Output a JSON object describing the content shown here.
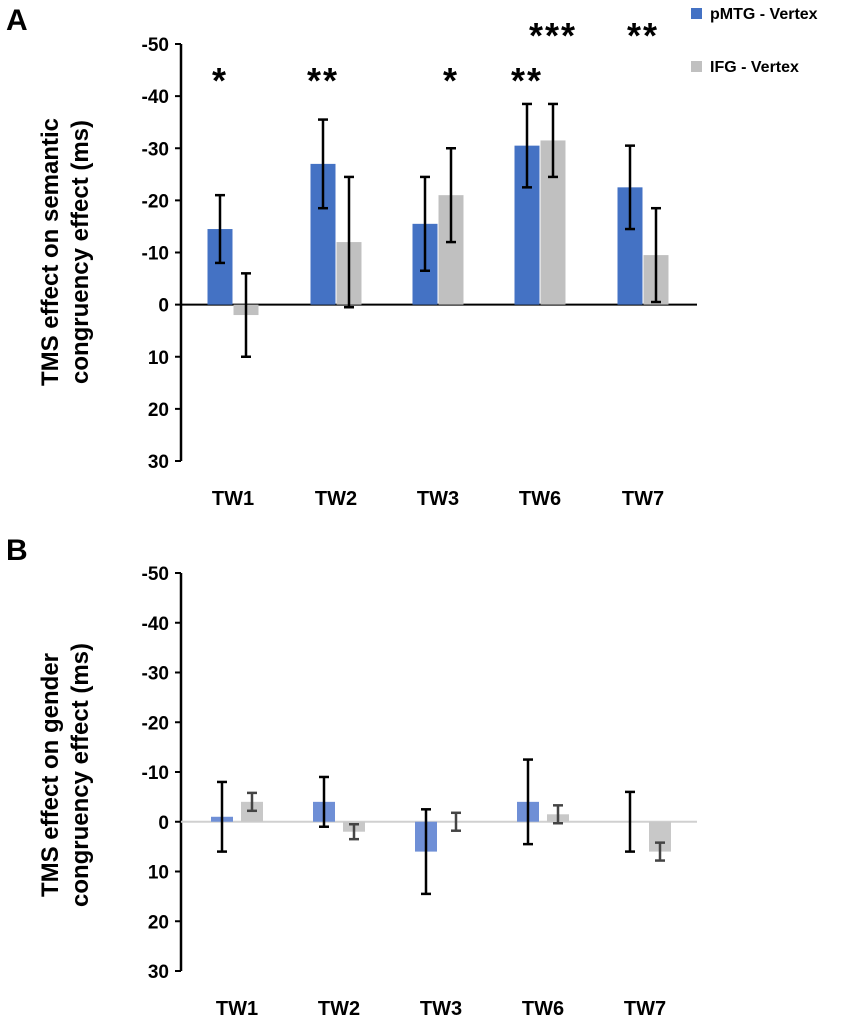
{
  "legend": [
    {
      "label": "pMTG - Vertex",
      "color": "#4472C4"
    },
    {
      "label": "IFG - Vertex",
      "color": "#C0C0C0"
    }
  ],
  "chart_data": [
    {
      "panel_label": "A",
      "type": "bar",
      "ylabel_lines": [
        "TMS effect on semantic",
        "congruency effect (ms)"
      ],
      "categories": [
        "TW1",
        "TW2",
        "TW3",
        "TW6",
        "TW7"
      ],
      "yticks": [
        "-50",
        "-40",
        "-30",
        "-20",
        "-10",
        "0",
        "10",
        "20",
        "30"
      ],
      "ylim": [
        -50,
        30
      ],
      "y_inverted": true,
      "series": [
        {
          "name": "pMTG - Vertex",
          "color": "#4472C4",
          "values": [
            -14.5,
            -27,
            -15.5,
            -30.5,
            -22.5
          ],
          "errors": [
            6.5,
            8.5,
            9,
            8,
            8
          ]
        },
        {
          "name": "IFG - Vertex",
          "color": "#C0C0C0",
          "values": [
            2,
            -12,
            -21,
            -31.5,
            -9.5
          ],
          "errors": [
            8,
            12.5,
            9,
            7,
            9
          ]
        }
      ],
      "significance": [
        "*",
        "**",
        "*",
        "**",
        "***",
        "**"
      ]
    },
    {
      "panel_label": "B",
      "type": "bar",
      "ylabel_lines": [
        "TMS effect on gender",
        "congruency effect (ms)"
      ],
      "categories": [
        "TW1",
        "TW2",
        "TW3",
        "TW6",
        "TW7"
      ],
      "yticks": [
        "-50",
        "-40",
        "-30",
        "-20",
        "-10",
        "0",
        "10",
        "20",
        "30"
      ],
      "ylim": [
        -50,
        30
      ],
      "y_inverted": true,
      "series": [
        {
          "name": "pMTG - Vertex",
          "color": "#6F8FD6",
          "values": [
            -1,
            -4,
            6,
            -4,
            0
          ],
          "errors": [
            7,
            5,
            8.5,
            8.5,
            6
          ]
        },
        {
          "name": "IFG - Vertex",
          "color": "#C8C8C8",
          "values": [
            -4,
            2,
            0,
            -1.5,
            6
          ],
          "errors": [
            1.8,
            1.5,
            1.8,
            1.8,
            1.8
          ]
        }
      ]
    }
  ]
}
